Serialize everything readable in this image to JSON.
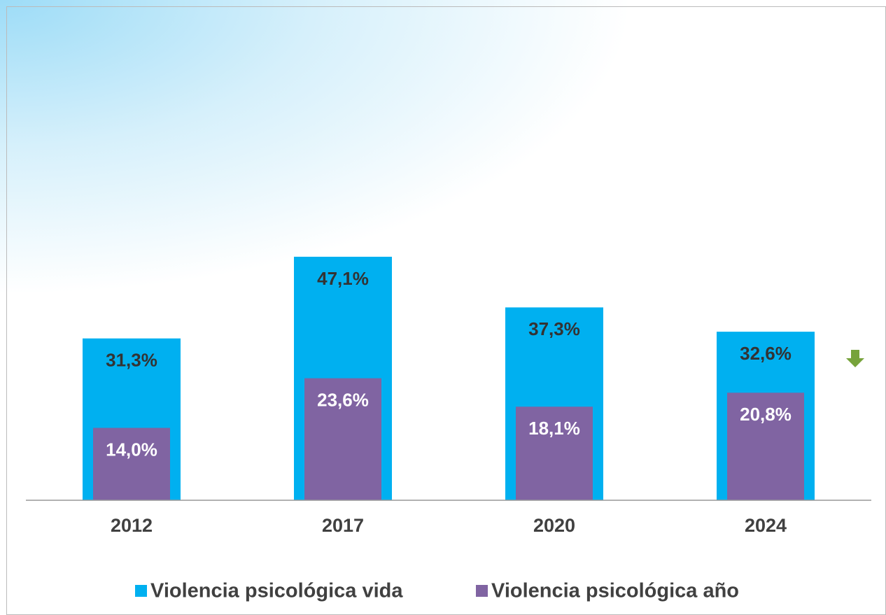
{
  "chart_data": {
    "type": "bar",
    "categories": [
      "2012",
      "2017",
      "2020",
      "2024"
    ],
    "series": [
      {
        "name": "Violencia psicológica vida",
        "color": "#00b0f0",
        "values": [
          31.3,
          47.1,
          37.3,
          32.6
        ],
        "value_labels": [
          "31,3%",
          "47,1%",
          "37,3%",
          "32,6%"
        ]
      },
      {
        "name": "Violencia psicológica año",
        "color": "#8064a2",
        "values": [
          14.0,
          23.6,
          18.1,
          20.8
        ],
        "value_labels": [
          "14,0%",
          "23,6%",
          "18,1%",
          "20,8%"
        ]
      }
    ],
    "ylim": [
      0,
      95
    ],
    "legend": "bottom"
  }
}
